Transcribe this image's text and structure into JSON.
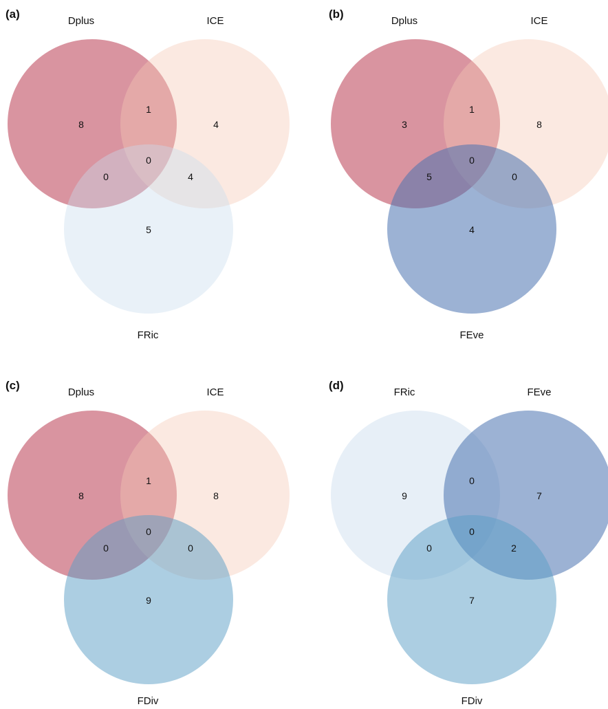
{
  "figure": {
    "panels": [
      {
        "id": "a",
        "label": "(a)",
        "sets": [
          {
            "name": "Dplus",
            "color": "#b93c52"
          },
          {
            "name": "ICE",
            "color": "#f6c7b3"
          },
          {
            "name": "FRic",
            "color": "#c9dbed"
          }
        ],
        "counts": {
          "only_1": "8",
          "only_2": "4",
          "only_3": "5",
          "r12": "1",
          "r13": "0",
          "r23": "4",
          "r123": "0"
        }
      },
      {
        "id": "b",
        "label": "(b)",
        "sets": [
          {
            "name": "Dplus",
            "color": "#b93c52"
          },
          {
            "name": "ICE",
            "color": "#f6c7b3"
          },
          {
            "name": "FEve",
            "color": "#4a72b0"
          }
        ],
        "counts": {
          "only_1": "3",
          "only_2": "8",
          "only_3": "4",
          "r12": "1",
          "r13": "5",
          "r23": "0",
          "r123": "0"
        }
      },
      {
        "id": "c",
        "label": "(c)",
        "sets": [
          {
            "name": "Dplus",
            "color": "#b93c52"
          },
          {
            "name": "ICE",
            "color": "#f6c7b3"
          },
          {
            "name": "FDiv",
            "color": "#5a9dc6"
          }
        ],
        "counts": {
          "only_1": "8",
          "only_2": "8",
          "only_3": "9",
          "r12": "1",
          "r13": "0",
          "r23": "0",
          "r123": "0"
        }
      },
      {
        "id": "d",
        "label": "(d)",
        "sets": [
          {
            "name": "FRic",
            "color": "#c9dbed"
          },
          {
            "name": "FEve",
            "color": "#4a72b0"
          },
          {
            "name": "FDiv",
            "color": "#5a9dc6"
          }
        ],
        "counts": {
          "only_1": "9",
          "only_2": "7",
          "only_3": "7",
          "r12": "0",
          "r13": "0",
          "r23": "2",
          "r123": "0"
        }
      }
    ]
  }
}
